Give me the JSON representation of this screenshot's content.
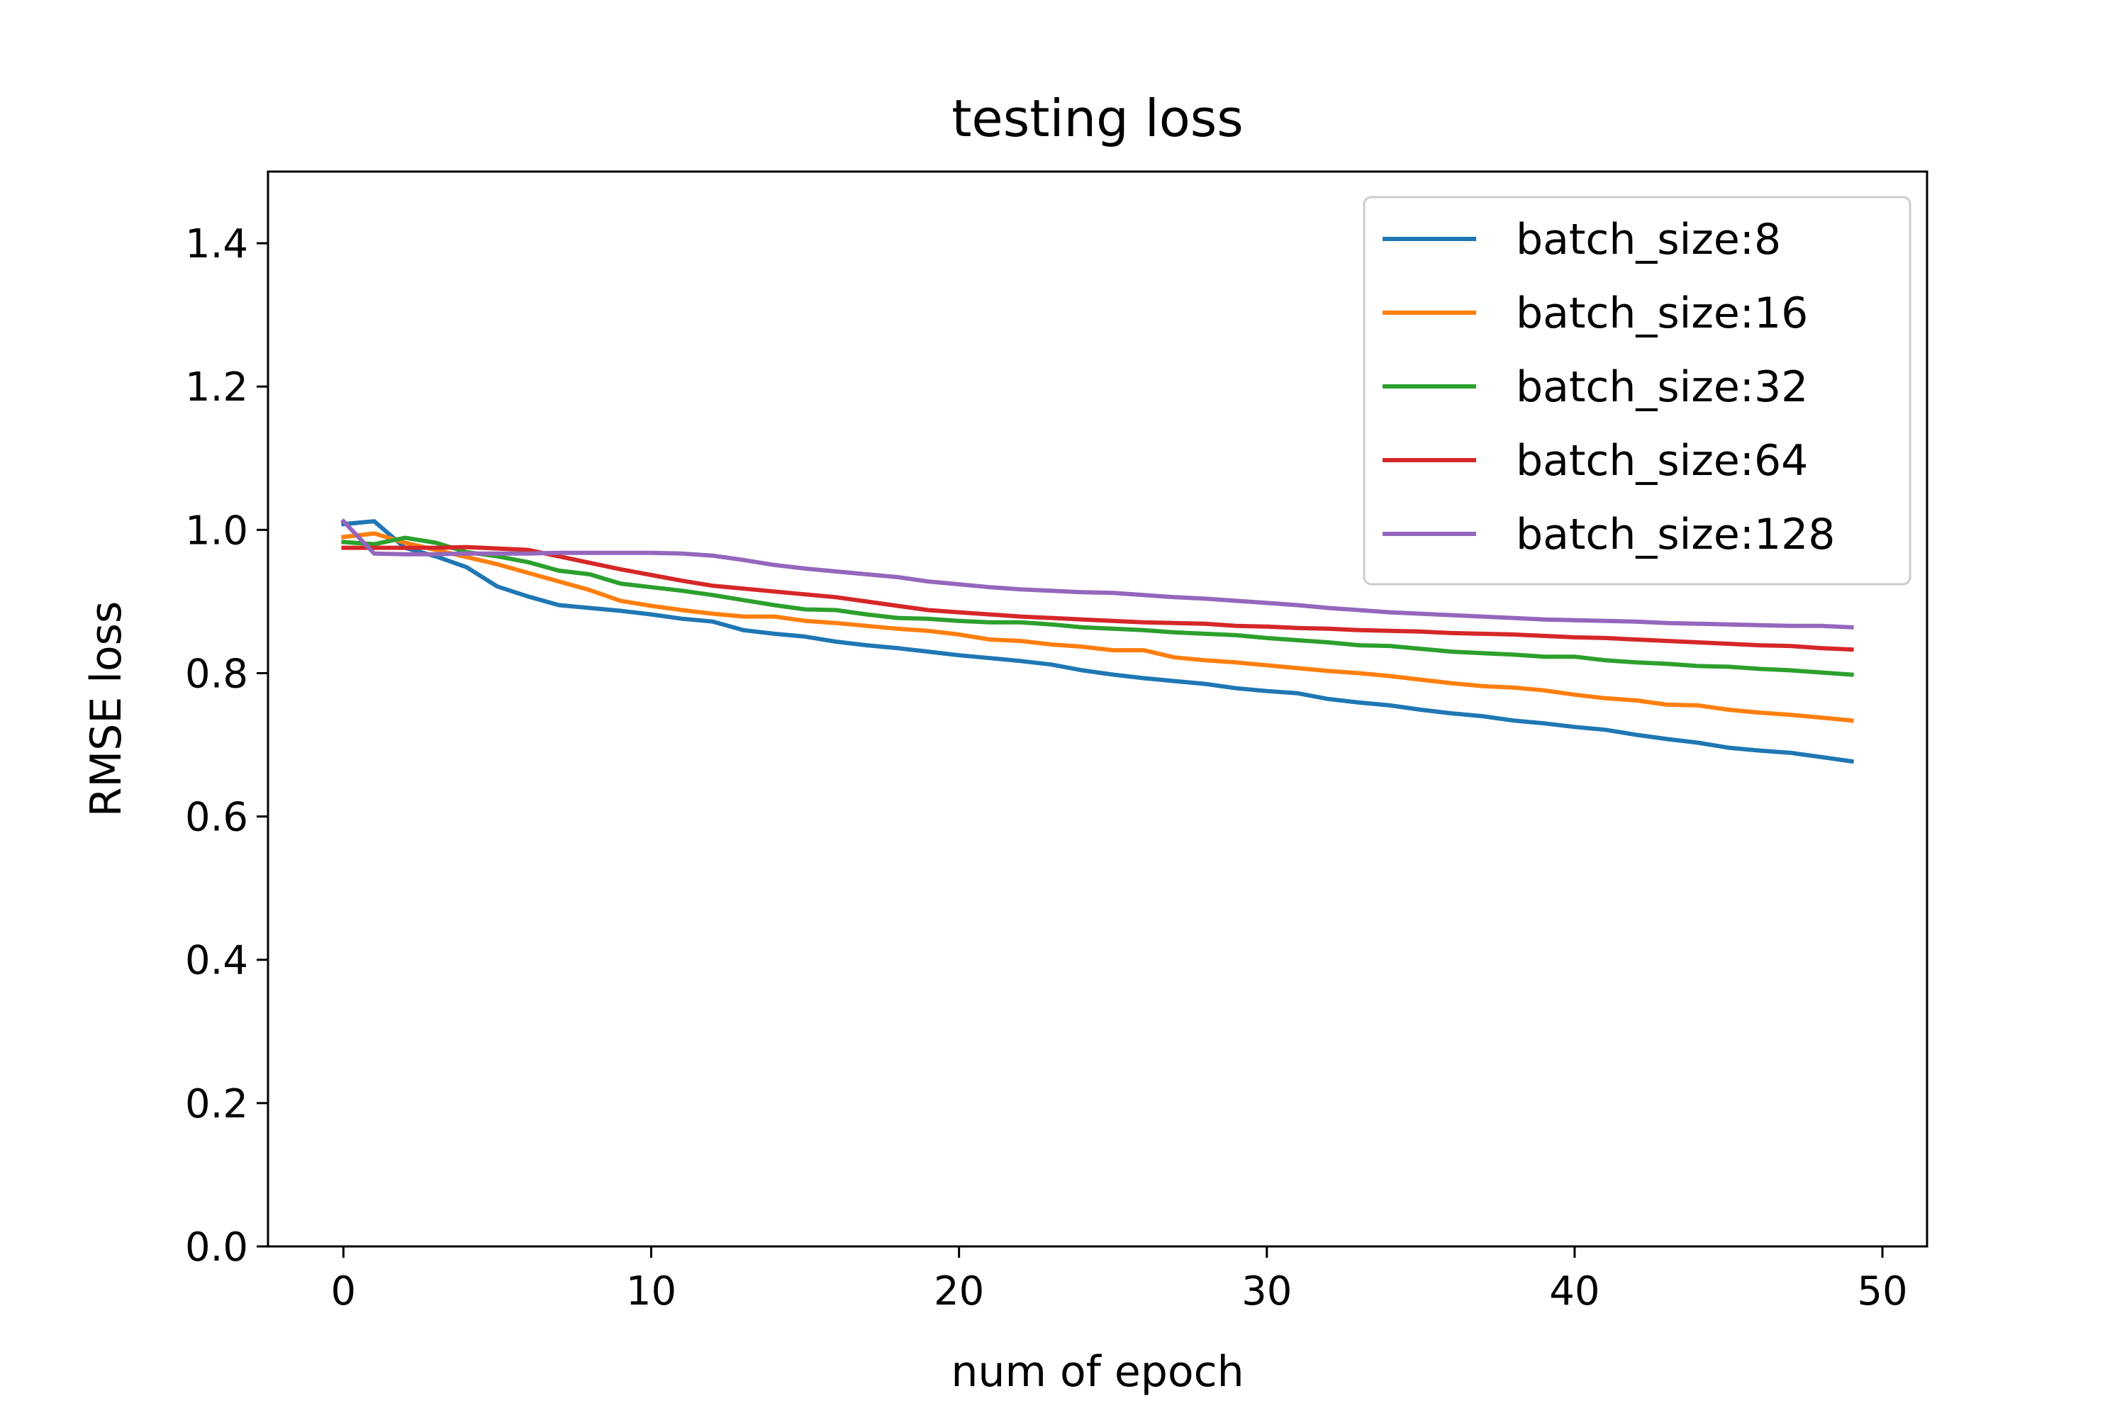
{
  "chart_data": {
    "type": "line",
    "title": "testing loss",
    "xlabel": "num of epoch",
    "ylabel": "RMSE loss",
    "xlim": [
      -2.45,
      51.45
    ],
    "ylim": [
      0.0,
      1.5
    ],
    "xticks": [
      0,
      10,
      20,
      30,
      40,
      50
    ],
    "yticks": [
      0.0,
      0.2,
      0.4,
      0.6,
      0.8,
      1.0,
      1.2,
      1.4
    ],
    "grid": false,
    "legend_position": "upper-right",
    "x": [
      0,
      1,
      2,
      3,
      4,
      5,
      6,
      7,
      8,
      9,
      10,
      11,
      12,
      13,
      14,
      15,
      16,
      17,
      18,
      19,
      20,
      21,
      22,
      23,
      24,
      25,
      26,
      27,
      28,
      29,
      30,
      31,
      32,
      33,
      34,
      35,
      36,
      37,
      38,
      39,
      40,
      41,
      42,
      43,
      44,
      45,
      46,
      47,
      48,
      49
    ],
    "series": [
      {
        "name": "batch_size:8",
        "color": "#1f77b4",
        "values": [
          1.008,
          1.012,
          0.975,
          0.963,
          0.948,
          0.921,
          0.907,
          0.895,
          0.891,
          0.887,
          0.882,
          0.876,
          0.872,
          0.86,
          0.855,
          0.851,
          0.844,
          0.839,
          0.835,
          0.83,
          0.825,
          0.821,
          0.817,
          0.812,
          0.804,
          0.798,
          0.793,
          0.789,
          0.785,
          0.779,
          0.775,
          0.772,
          0.764,
          0.759,
          0.755,
          0.749,
          0.744,
          0.74,
          0.734,
          0.73,
          0.725,
          0.721,
          0.714,
          0.708,
          0.703,
          0.696,
          0.692,
          0.689,
          0.683,
          0.677
        ]
      },
      {
        "name": "batch_size:16",
        "color": "#ff7f0e",
        "values": [
          0.99,
          0.995,
          0.982,
          0.972,
          0.962,
          0.952,
          0.94,
          0.928,
          0.916,
          0.901,
          0.894,
          0.888,
          0.883,
          0.879,
          0.879,
          0.873,
          0.87,
          0.866,
          0.862,
          0.859,
          0.854,
          0.847,
          0.845,
          0.84,
          0.837,
          0.832,
          0.832,
          0.822,
          0.818,
          0.815,
          0.811,
          0.807,
          0.803,
          0.8,
          0.796,
          0.791,
          0.786,
          0.782,
          0.78,
          0.776,
          0.77,
          0.765,
          0.762,
          0.756,
          0.755,
          0.749,
          0.745,
          0.742,
          0.738,
          0.734
        ]
      },
      {
        "name": "batch_size:32",
        "color": "#2ca02c",
        "values": [
          0.983,
          0.98,
          0.989,
          0.982,
          0.969,
          0.963,
          0.955,
          0.943,
          0.938,
          0.925,
          0.92,
          0.915,
          0.909,
          0.902,
          0.895,
          0.889,
          0.888,
          0.882,
          0.877,
          0.876,
          0.873,
          0.871,
          0.871,
          0.868,
          0.864,
          0.862,
          0.86,
          0.857,
          0.855,
          0.853,
          0.849,
          0.846,
          0.843,
          0.839,
          0.838,
          0.834,
          0.83,
          0.828,
          0.826,
          0.823,
          0.823,
          0.818,
          0.815,
          0.813,
          0.81,
          0.809,
          0.806,
          0.804,
          0.801,
          0.798
        ]
      },
      {
        "name": "batch_size:64",
        "color": "#d62728",
        "values": [
          0.975,
          0.975,
          0.975,
          0.975,
          0.976,
          0.974,
          0.972,
          0.963,
          0.954,
          0.945,
          0.937,
          0.929,
          0.922,
          0.918,
          0.914,
          0.91,
          0.906,
          0.9,
          0.894,
          0.888,
          0.885,
          0.882,
          0.879,
          0.877,
          0.875,
          0.873,
          0.871,
          0.87,
          0.869,
          0.866,
          0.865,
          0.863,
          0.862,
          0.86,
          0.859,
          0.858,
          0.856,
          0.855,
          0.854,
          0.852,
          0.85,
          0.849,
          0.847,
          0.845,
          0.843,
          0.841,
          0.839,
          0.838,
          0.835,
          0.833
        ]
      },
      {
        "name": "batch_size:128",
        "color": "#9467bd",
        "values": [
          1.012,
          0.967,
          0.966,
          0.966,
          0.967,
          0.967,
          0.967,
          0.968,
          0.968,
          0.968,
          0.968,
          0.967,
          0.964,
          0.958,
          0.951,
          0.946,
          0.942,
          0.938,
          0.934,
          0.928,
          0.924,
          0.92,
          0.917,
          0.915,
          0.913,
          0.912,
          0.909,
          0.906,
          0.904,
          0.901,
          0.898,
          0.895,
          0.891,
          0.888,
          0.885,
          0.883,
          0.881,
          0.879,
          0.877,
          0.875,
          0.874,
          0.873,
          0.872,
          0.87,
          0.869,
          0.868,
          0.867,
          0.866,
          0.866,
          0.864
        ]
      }
    ]
  }
}
